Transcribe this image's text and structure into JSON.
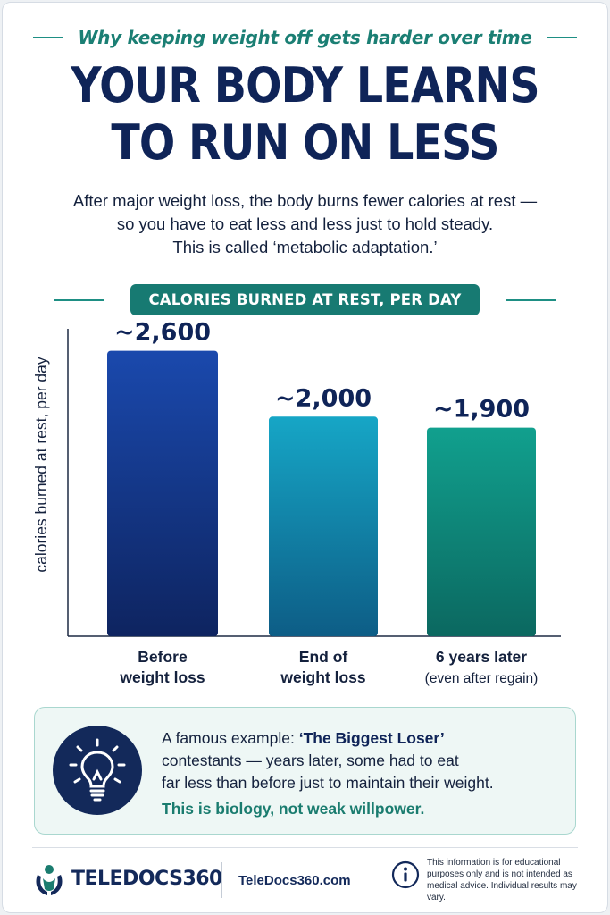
{
  "header": {
    "eyebrow": "Why keeping weight off gets harder over time",
    "title_line1": "YOUR BODY LEARNS",
    "title_line2": "TO RUN ON LESS",
    "intro_line1": "After major weight loss, the body burns fewer calories at rest —",
    "intro_line2": "so you have to eat less and less just to hold steady.",
    "intro_line3": "This is called ‘metabolic adaptation.’"
  },
  "chart_data": {
    "type": "bar",
    "title": "CALORIES BURNED AT REST, PER DAY",
    "ylabel": "calories burned at rest, per day",
    "xlabel": "",
    "ylim": [
      0,
      2800
    ],
    "grid": false,
    "categories": [
      [
        "Before",
        "weight loss"
      ],
      [
        "End of",
        "weight loss"
      ],
      [
        "6 years later",
        "(even after regain)"
      ]
    ],
    "values": [
      2600,
      2000,
      1900
    ],
    "value_labels": [
      "~2,600",
      "~2,000",
      "~1,900"
    ],
    "colors": [
      [
        "#1a49ad",
        "#0e2460"
      ],
      [
        "#16a6c6",
        "#0d5d86"
      ],
      [
        "#11a08e",
        "#0b6860"
      ]
    ]
  },
  "callout": {
    "icon": "lightbulb-icon",
    "lead": "A famous example: ",
    "emphasis": "‘The Biggest Loser’",
    "line1_rest": "",
    "line2": "contestants — years later, some had to eat",
    "line3": "far less than before just to maintain their weight.",
    "conclusion": "This is biology, not weak willpower."
  },
  "footer": {
    "brand": "TELEDOCS360",
    "site": "TeleDocs360.com",
    "disclaimer": "This information is for educational purposes only and is not intended as medical advice. Individual results may vary."
  },
  "colors": {
    "navy": "#0f2458",
    "teal": "#177a72",
    "teal_text": "#1b7f74"
  }
}
